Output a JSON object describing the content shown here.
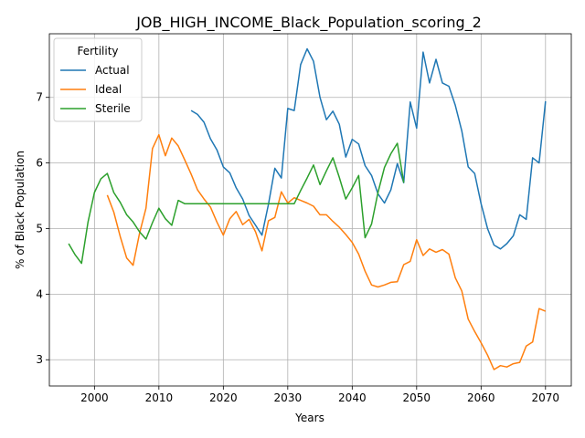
{
  "chart_data": {
    "type": "line",
    "title": "JOB_HIGH_INCOME_Black_Population_scoring_2",
    "xlabel": "Years",
    "ylabel": "% of Black Population",
    "xlim": [
      1993,
      2074
    ],
    "ylim": [
      2.6,
      7.97
    ],
    "xticks": [
      2000,
      2010,
      2020,
      2030,
      2040,
      2050,
      2060,
      2070
    ],
    "yticks": [
      3,
      4,
      5,
      6,
      7
    ],
    "grid": true,
    "legend": {
      "title": "Fertility",
      "placement": "top-left"
    },
    "series": [
      {
        "name": "Actual",
        "color": "#1f77b4",
        "x": [
          2015,
          2016,
          2017,
          2018,
          2019,
          2020,
          2021,
          2022,
          2023,
          2024,
          2025,
          2026,
          2027,
          2028,
          2029,
          2030,
          2031,
          2032,
          2033,
          2034,
          2035,
          2036,
          2037,
          2038,
          2039,
          2040,
          2041,
          2042,
          2043,
          2044,
          2045,
          2046,
          2047,
          2048,
          2049,
          2050,
          2051,
          2052,
          2053,
          2054,
          2055,
          2056,
          2057,
          2058,
          2059,
          2060,
          2061,
          2062,
          2063,
          2064,
          2065,
          2066,
          2067,
          2068,
          2069,
          2070
        ],
        "y": [
          6.8,
          6.74,
          6.62,
          6.37,
          6.2,
          5.94,
          5.85,
          5.62,
          5.45,
          5.2,
          5.05,
          4.9,
          5.37,
          5.92,
          5.77,
          6.83,
          6.8,
          7.5,
          7.74,
          7.55,
          7.0,
          6.66,
          6.79,
          6.59,
          6.09,
          6.36,
          6.29,
          5.96,
          5.81,
          5.53,
          5.39,
          5.59,
          5.99,
          5.7,
          6.93,
          6.53,
          7.69,
          7.22,
          7.58,
          7.22,
          7.17,
          6.88,
          6.49,
          5.94,
          5.84,
          5.38,
          5.0,
          4.75,
          4.69,
          4.77,
          4.89,
          5.21,
          5.14,
          6.08,
          6.0,
          6.94
        ]
      },
      {
        "name": "Ideal",
        "color": "#ff7f0e",
        "x": [
          2002,
          2003,
          2004,
          2005,
          2006,
          2007,
          2008,
          2009,
          2010,
          2011,
          2012,
          2013,
          2014,
          2015,
          2016,
          2017,
          2018,
          2019,
          2020,
          2021,
          2022,
          2023,
          2024,
          2025,
          2026,
          2027,
          2028,
          2029,
          2030,
          2031,
          2032,
          2033,
          2034,
          2035,
          2036,
          2037,
          2038,
          2039,
          2040,
          2041,
          2042,
          2043,
          2044,
          2045,
          2046,
          2047,
          2048,
          2049,
          2050,
          2051,
          2052,
          2053,
          2054,
          2055,
          2056,
          2057,
          2058,
          2059,
          2060,
          2061,
          2062,
          2063,
          2064,
          2065,
          2066,
          2067,
          2068,
          2069,
          2070
        ],
        "y": [
          5.51,
          5.25,
          4.88,
          4.55,
          4.44,
          4.93,
          5.31,
          6.22,
          6.43,
          6.11,
          6.38,
          6.26,
          6.05,
          5.83,
          5.59,
          5.45,
          5.33,
          5.1,
          4.9,
          5.15,
          5.26,
          5.06,
          5.14,
          4.95,
          4.66,
          5.12,
          5.17,
          5.56,
          5.39,
          5.47,
          5.43,
          5.39,
          5.34,
          5.21,
          5.21,
          5.11,
          5.02,
          4.91,
          4.79,
          4.61,
          4.35,
          4.14,
          4.11,
          4.14,
          4.18,
          4.19,
          4.45,
          4.5,
          4.83,
          4.59,
          4.69,
          4.64,
          4.68,
          4.61,
          4.25,
          4.05,
          3.62,
          3.43,
          3.26,
          3.07,
          2.85,
          2.91,
          2.89,
          2.94,
          2.96,
          3.21,
          3.27,
          3.78,
          3.74
        ]
      },
      {
        "name": "Sterile",
        "color": "#2ca02c",
        "x": [
          1996,
          1997,
          1998,
          1999,
          2000,
          2001,
          2002,
          2003,
          2004,
          2005,
          2006,
          2007,
          2008,
          2009,
          2010,
          2011,
          2012,
          2013,
          2014,
          2015,
          2016,
          2017,
          2018,
          2019,
          2020,
          2021,
          2022,
          2023,
          2024,
          2025,
          2026,
          2027,
          2028,
          2029,
          2030,
          2031,
          2032,
          2033,
          2034,
          2035,
          2036,
          2037,
          2038,
          2039,
          2040,
          2041,
          2042,
          2043,
          2044,
          2045,
          2046,
          2047,
          2048
        ],
        "y": [
          4.77,
          4.6,
          4.47,
          5.1,
          5.55,
          5.76,
          5.84,
          5.55,
          5.4,
          5.21,
          5.1,
          4.95,
          4.84,
          5.09,
          5.31,
          5.15,
          5.05,
          5.43,
          5.38,
          5.38,
          5.38,
          5.38,
          5.38,
          5.38,
          5.38,
          5.38,
          5.38,
          5.38,
          5.38,
          5.38,
          5.38,
          5.38,
          5.38,
          5.38,
          5.38,
          5.38,
          5.58,
          5.77,
          5.97,
          5.67,
          5.88,
          6.08,
          5.78,
          5.45,
          5.62,
          5.81,
          4.86,
          5.07,
          5.55,
          5.93,
          6.14,
          6.3,
          5.7
        ]
      }
    ]
  }
}
